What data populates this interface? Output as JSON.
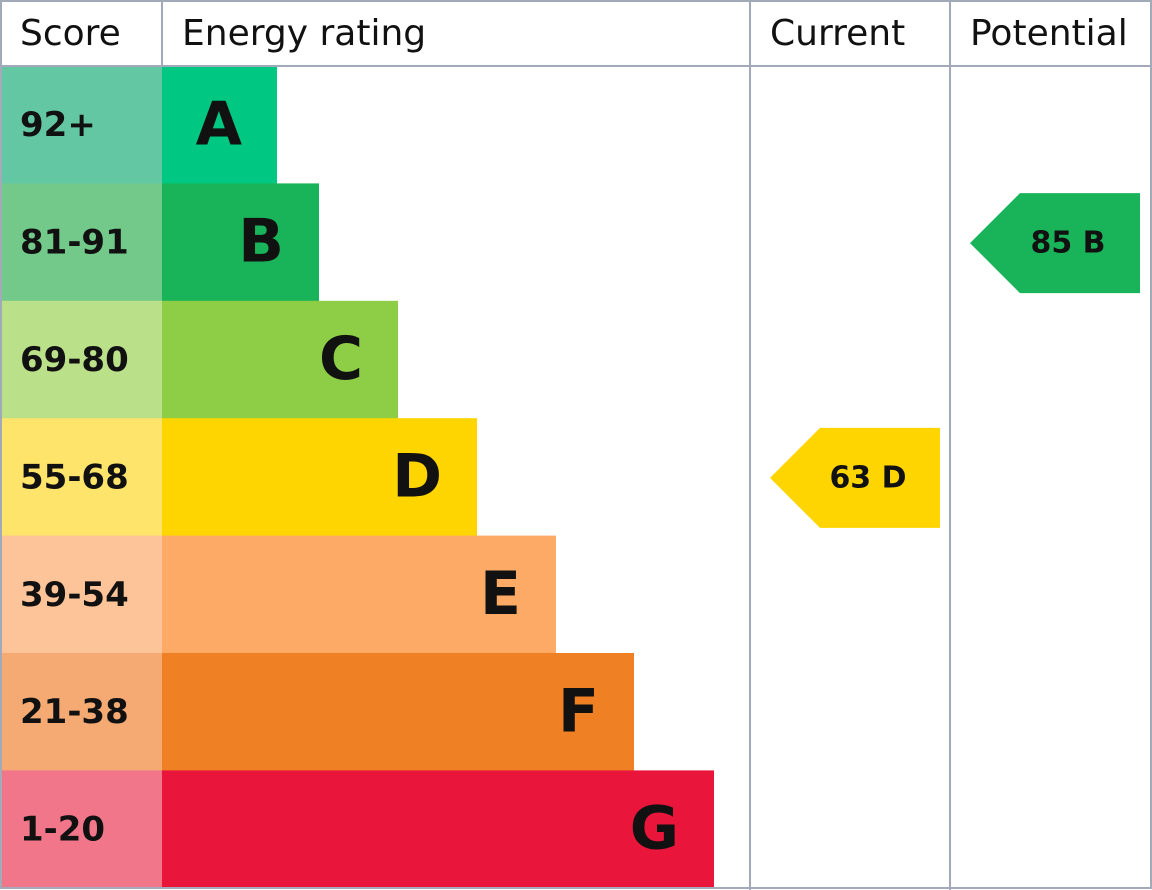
{
  "header": [
    "Score",
    "Energy rating",
    "Current",
    "Potential"
  ],
  "rows": [
    {
      "score": "92+",
      "band": "A",
      "score_color": "#63c7a4",
      "band_color": "#00c781"
    },
    {
      "score": "81-91",
      "band": "B",
      "score_color": "#72c98a",
      "band_color": "#19b459"
    },
    {
      "score": "69-80",
      "band": "C",
      "score_color": "#bbe08a",
      "band_color": "#8dce46"
    },
    {
      "score": "55-68",
      "band": "D",
      "score_color": "#fee46a",
      "band_color": "#ffd500"
    },
    {
      "score": "39-54",
      "band": "E",
      "score_color": "#fdc49a",
      "band_color": "#fcaa65"
    },
    {
      "score": "21-38",
      "band": "F",
      "score_color": "#f4aa72",
      "band_color": "#ef8023"
    },
    {
      "score": "1-20",
      "band": "G",
      "score_color": "#f1768a",
      "band_color": "#e9153b"
    }
  ],
  "current": {
    "label": "63 D",
    "color": "#ffd500"
  },
  "potential": {
    "label": "85 B",
    "color": "#19b459"
  }
}
